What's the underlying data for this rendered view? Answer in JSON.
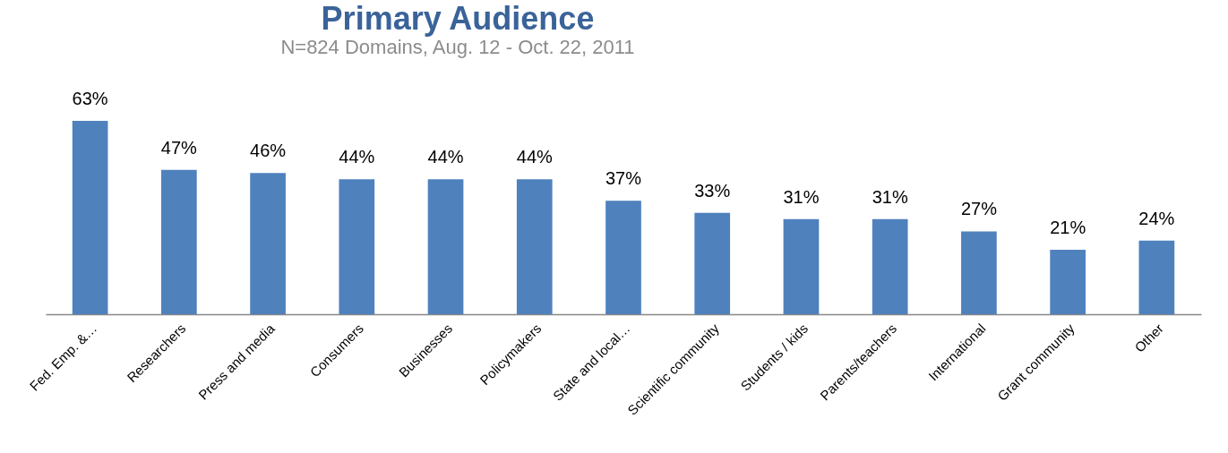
{
  "chart_data": {
    "type": "bar",
    "title": "Primary Audience",
    "subtitle": "N=824 Domains,  Aug. 12 - Oct. 22, 2011",
    "categories": [
      "Fed. Emp. &…",
      "Researchers",
      "Press and media",
      "Consumers",
      "Businesses",
      "Policymakers",
      "State and local…",
      "Scientific community",
      "Students / kids",
      "Parents/teachers",
      "International",
      "Grant community",
      "Other"
    ],
    "values": [
      63,
      47,
      46,
      44,
      44,
      44,
      37,
      33,
      31,
      31,
      27,
      21,
      24
    ],
    "value_labels": [
      "63%",
      "47%",
      "46%",
      "44%",
      "44%",
      "44%",
      "37%",
      "33%",
      "31%",
      "31%",
      "27%",
      "21%",
      "24%"
    ],
    "color": "#4f81bd"
  }
}
